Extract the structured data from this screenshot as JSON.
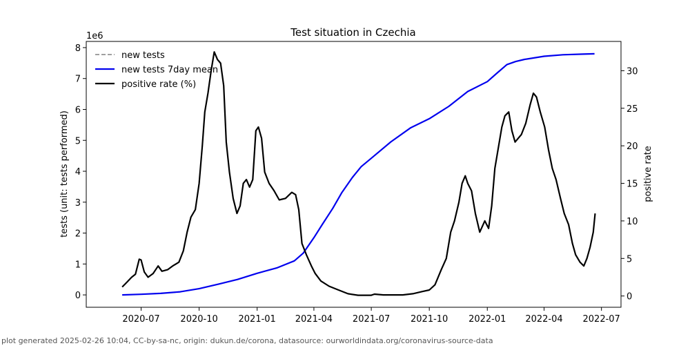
{
  "chart_data": {
    "type": "line",
    "title": "Test situation in Czechia",
    "left_axis": {
      "label": "tests (unit: tests performed)",
      "multiplier_label": "1e6",
      "ylim": [
        -0.4,
        8.2
      ],
      "ticks": [
        0,
        1,
        2,
        3,
        4,
        5,
        6,
        7,
        8
      ],
      "tick_labels": [
        "0",
        "1",
        "2",
        "3",
        "4",
        "5",
        "6",
        "7",
        "8"
      ]
    },
    "right_axis": {
      "label": "positive rate",
      "ylim": [
        -1.5,
        33.9
      ],
      "ticks": [
        0,
        5,
        10,
        15,
        20,
        25,
        30
      ],
      "tick_labels": [
        "0",
        "5",
        "10",
        "15",
        "20",
        "25",
        "30"
      ]
    },
    "x_axis": {
      "xlim": [
        "2020-04-05",
        "2022-08-01"
      ],
      "ticks": [
        "2020-07-01",
        "2020-10-01",
        "2021-01-01",
        "2021-04-01",
        "2021-07-01",
        "2021-10-01",
        "2022-01-01",
        "2022-04-01",
        "2022-07-01"
      ],
      "tick_labels": [
        "2020-07",
        "2020-10",
        "2021-01",
        "2021-04",
        "2021-07",
        "2021-10",
        "2022-01",
        "2022-04",
        "2022-07"
      ]
    },
    "legend": {
      "placement": "top-left",
      "entries": [
        {
          "label": "new tests",
          "color": "#808080",
          "style": "dashed"
        },
        {
          "label": "new tests 7day mean",
          "color": "#0000ee",
          "style": "solid"
        },
        {
          "label": "positive rate (%)",
          "color": "#000000",
          "style": "solid"
        }
      ]
    },
    "series": [
      {
        "name": "new tests 7day mean",
        "axis": "left",
        "color": "#0000ee",
        "points": [
          [
            "2020-06-01",
            0.0
          ],
          [
            "2020-07-01",
            0.02
          ],
          [
            "2020-08-01",
            0.05
          ],
          [
            "2020-09-01",
            0.1
          ],
          [
            "2020-10-01",
            0.2
          ],
          [
            "2020-11-01",
            0.35
          ],
          [
            "2020-12-01",
            0.5
          ],
          [
            "2021-01-01",
            0.7
          ],
          [
            "2021-02-01",
            0.87
          ],
          [
            "2021-03-01",
            1.1
          ],
          [
            "2021-03-15",
            1.35
          ],
          [
            "2021-04-01",
            1.85
          ],
          [
            "2021-04-15",
            2.3
          ],
          [
            "2021-05-01",
            2.8
          ],
          [
            "2021-05-15",
            3.3
          ],
          [
            "2021-06-01",
            3.8
          ],
          [
            "2021-06-15",
            4.15
          ],
          [
            "2021-07-01",
            4.42
          ],
          [
            "2021-08-01",
            4.95
          ],
          [
            "2021-09-01",
            5.4
          ],
          [
            "2021-10-01",
            5.7
          ],
          [
            "2021-11-01",
            6.1
          ],
          [
            "2021-12-01",
            6.58
          ],
          [
            "2022-01-01",
            6.9
          ],
          [
            "2022-01-15",
            7.15
          ],
          [
            "2022-02-01",
            7.45
          ],
          [
            "2022-02-15",
            7.55
          ],
          [
            "2022-03-01",
            7.62
          ],
          [
            "2022-04-01",
            7.72
          ],
          [
            "2022-05-01",
            7.77
          ],
          [
            "2022-06-01",
            7.79
          ],
          [
            "2022-06-20",
            7.8
          ]
        ]
      },
      {
        "name": "positive rate (%)",
        "axis": "right",
        "color": "#000000",
        "points": [
          [
            "2020-06-01",
            1.2
          ],
          [
            "2020-06-08",
            1.8
          ],
          [
            "2020-06-16",
            2.5
          ],
          [
            "2020-06-22",
            2.9
          ],
          [
            "2020-06-28",
            4.9
          ],
          [
            "2020-07-01",
            4.8
          ],
          [
            "2020-07-06",
            3.2
          ],
          [
            "2020-07-12",
            2.5
          ],
          [
            "2020-07-20",
            3.0
          ],
          [
            "2020-07-28",
            4.0
          ],
          [
            "2020-08-03",
            3.3
          ],
          [
            "2020-08-12",
            3.5
          ],
          [
            "2020-08-20",
            4.0
          ],
          [
            "2020-08-30",
            4.5
          ],
          [
            "2020-09-06",
            6.0
          ],
          [
            "2020-09-12",
            8.5
          ],
          [
            "2020-09-18",
            10.5
          ],
          [
            "2020-09-25",
            11.5
          ],
          [
            "2020-10-01",
            15.0
          ],
          [
            "2020-10-06",
            20.0
          ],
          [
            "2020-10-10",
            24.5
          ],
          [
            "2020-10-15",
            27.0
          ],
          [
            "2020-10-20",
            30.0
          ],
          [
            "2020-10-25",
            32.5
          ],
          [
            "2020-10-30",
            31.5
          ],
          [
            "2020-11-04",
            31.0
          ],
          [
            "2020-11-09",
            28.0
          ],
          [
            "2020-11-13",
            20.5
          ],
          [
            "2020-11-18",
            16.5
          ],
          [
            "2020-11-24",
            13.0
          ],
          [
            "2020-11-30",
            11.0
          ],
          [
            "2020-12-05",
            12.0
          ],
          [
            "2020-12-10",
            15.0
          ],
          [
            "2020-12-15",
            15.5
          ],
          [
            "2020-12-20",
            14.5
          ],
          [
            "2020-12-25",
            15.5
          ],
          [
            "2020-12-30",
            22.0
          ],
          [
            "2021-01-03",
            22.5
          ],
          [
            "2021-01-08",
            21.0
          ],
          [
            "2021-01-13",
            16.5
          ],
          [
            "2021-01-20",
            15.0
          ],
          [
            "2021-01-28",
            14.0
          ],
          [
            "2021-02-05",
            12.8
          ],
          [
            "2021-02-15",
            13.0
          ],
          [
            "2021-02-25",
            13.8
          ],
          [
            "2021-03-03",
            13.5
          ],
          [
            "2021-03-08",
            11.5
          ],
          [
            "2021-03-13",
            7.0
          ],
          [
            "2021-03-20",
            5.5
          ],
          [
            "2021-03-28",
            4.0
          ],
          [
            "2021-04-03",
            3.0
          ],
          [
            "2021-04-12",
            2.0
          ],
          [
            "2021-04-25",
            1.3
          ],
          [
            "2021-05-10",
            0.8
          ],
          [
            "2021-05-25",
            0.3
          ],
          [
            "2021-06-10",
            0.1
          ],
          [
            "2021-07-01",
            0.1
          ],
          [
            "2021-07-06",
            0.25
          ],
          [
            "2021-07-20",
            0.15
          ],
          [
            "2021-08-20",
            0.15
          ],
          [
            "2021-09-05",
            0.3
          ],
          [
            "2021-09-20",
            0.6
          ],
          [
            "2021-10-01",
            0.8
          ],
          [
            "2021-10-10",
            1.5
          ],
          [
            "2021-10-20",
            3.5
          ],
          [
            "2021-10-28",
            5.0
          ],
          [
            "2021-11-04",
            8.5
          ],
          [
            "2021-11-10",
            10.0
          ],
          [
            "2021-11-17",
            12.5
          ],
          [
            "2021-11-22",
            15.0
          ],
          [
            "2021-11-27",
            16.0
          ],
          [
            "2021-12-01",
            15.0
          ],
          [
            "2021-12-07",
            14.0
          ],
          [
            "2021-12-13",
            11.0
          ],
          [
            "2021-12-20",
            8.5
          ],
          [
            "2021-12-28",
            10.0
          ],
          [
            "2022-01-03",
            9.0
          ],
          [
            "2022-01-08",
            12.0
          ],
          [
            "2022-01-13",
            17.0
          ],
          [
            "2022-01-18",
            19.5
          ],
          [
            "2022-01-24",
            22.5
          ],
          [
            "2022-01-29",
            24.0
          ],
          [
            "2022-02-04",
            24.5
          ],
          [
            "2022-02-09",
            22.0
          ],
          [
            "2022-02-14",
            20.5
          ],
          [
            "2022-02-19",
            21.0
          ],
          [
            "2022-02-24",
            21.5
          ],
          [
            "2022-03-03",
            23.0
          ],
          [
            "2022-03-10",
            25.5
          ],
          [
            "2022-03-15",
            27.0
          ],
          [
            "2022-03-20",
            26.5
          ],
          [
            "2022-03-26",
            24.5
          ],
          [
            "2022-04-02",
            22.5
          ],
          [
            "2022-04-08",
            19.5
          ],
          [
            "2022-04-14",
            17.0
          ],
          [
            "2022-04-20",
            15.5
          ],
          [
            "2022-04-27",
            13.0
          ],
          [
            "2022-05-03",
            11.0
          ],
          [
            "2022-05-10",
            9.5
          ],
          [
            "2022-05-16",
            7.0
          ],
          [
            "2022-05-21",
            5.5
          ],
          [
            "2022-05-28",
            4.5
          ],
          [
            "2022-06-03",
            4.0
          ],
          [
            "2022-06-08",
            5.0
          ],
          [
            "2022-06-13",
            6.5
          ],
          [
            "2022-06-18",
            8.5
          ],
          [
            "2022-06-21",
            11.0
          ]
        ]
      }
    ]
  },
  "footer": "plot generated 2025-02-26 10:04, CC-by-sa-nc, origin: dukun.de/corona, datasource: ourworldindata.org/coronavirus-source-data"
}
